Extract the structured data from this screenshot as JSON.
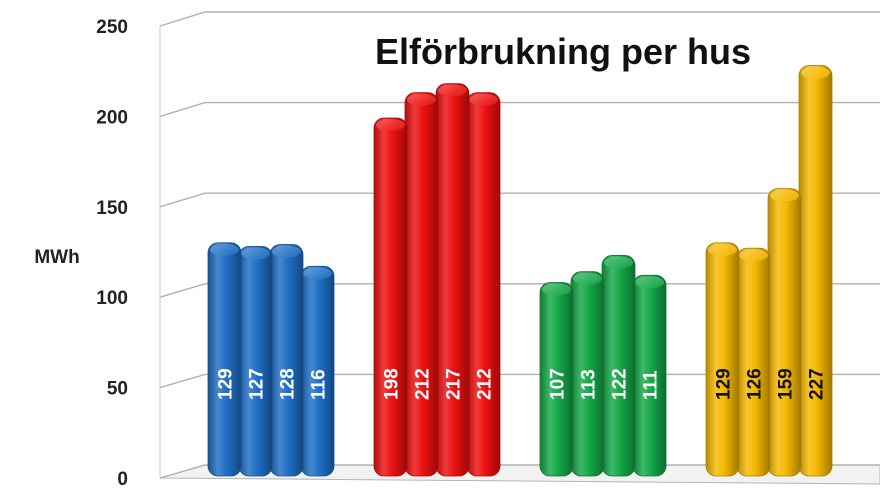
{
  "chart_data": {
    "type": "bar",
    "title": "Elförbrukning per hus",
    "xlabel": "",
    "ylabel": "MWh",
    "ylim": [
      0,
      250
    ],
    "y_ticks": [
      "0",
      "50",
      "100",
      "150",
      "200",
      "250"
    ],
    "grid": true,
    "legend": "none",
    "groups": [
      {
        "color": "#1f6fc6",
        "label_color": "#ffffff",
        "values": [
          129,
          127,
          128,
          116
        ]
      },
      {
        "color": "#ee1010",
        "label_color": "#ffffff",
        "values": [
          198,
          212,
          217,
          212
        ]
      },
      {
        "color": "#15a848",
        "label_color": "#ffffff",
        "values": [
          107,
          113,
          122,
          111
        ]
      },
      {
        "color": "#f5b800",
        "label_color": "#111111",
        "values": [
          129,
          126,
          159,
          227
        ]
      }
    ]
  }
}
